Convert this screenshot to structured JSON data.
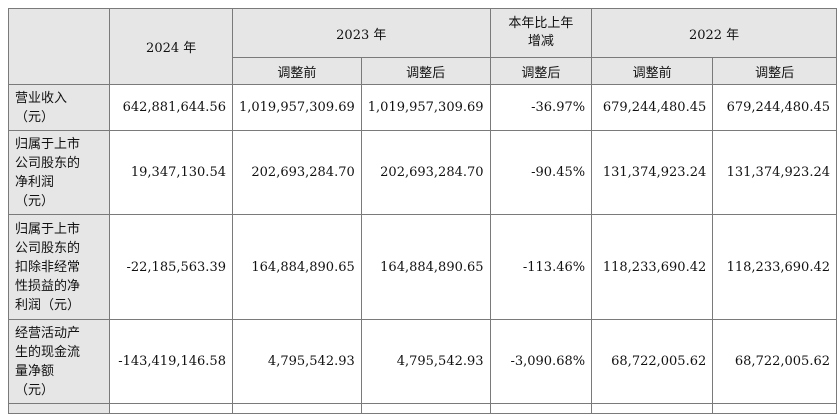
{
  "header": {
    "col_2024": "2024 年",
    "col_2023": "2023 年",
    "col_change": "本年比上年增减",
    "col_2022": "2022 年",
    "before_adj": "调整前",
    "after_adj": "调整后"
  },
  "rows": [
    {
      "label": [
        "营业收入",
        "（元）"
      ],
      "v2024": "642,881,644.56",
      "v2023_before": "1,019,957,309.69",
      "v2023_after": "1,019,957,309.69",
      "change": "-36.97%",
      "v2022_before": "679,244,480.45",
      "v2022_after": "679,244,480.45"
    },
    {
      "label": [
        "归属于上市",
        "公司股东的",
        "净利润",
        "（元）"
      ],
      "v2024": "19,347,130.54",
      "v2023_before": "202,693,284.70",
      "v2023_after": "202,693,284.70",
      "change": "-90.45%",
      "v2022_before": "131,374,923.24",
      "v2022_after": "131,374,923.24"
    },
    {
      "label": [
        "归属于上市",
        "公司股东的",
        "扣除非经常",
        "性损益的净",
        "利润（元）"
      ],
      "v2024": "-22,185,563.39",
      "v2023_before": "164,884,890.65",
      "v2023_after": "164,884,890.65",
      "change": "-113.46%",
      "v2022_before": "118,233,690.42",
      "v2022_after": "118,233,690.42"
    },
    {
      "label": [
        "经营活动产",
        "生的现金流",
        "量净额",
        "（元）"
      ],
      "v2024": "-143,419,146.58",
      "v2023_before": "4,795,542.93",
      "v2023_after": "4,795,542.93",
      "change": "-3,090.68%",
      "v2022_before": "68,722,005.62",
      "v2022_after": "68,722,005.62"
    }
  ]
}
